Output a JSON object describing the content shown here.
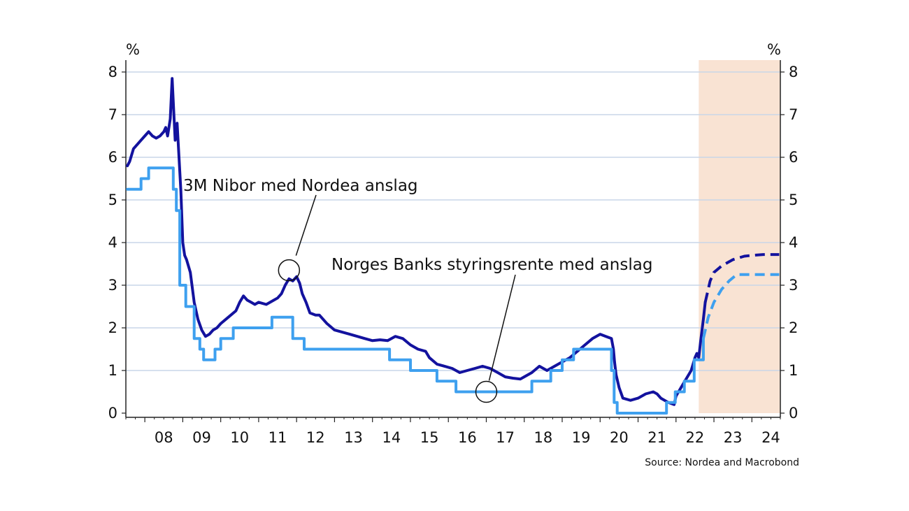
{
  "chart_data": {
    "type": "line",
    "title": "",
    "source": "Source: Nordea and Macrobond",
    "y_unit_left": "%",
    "y_unit_right": "%",
    "ylim": [
      0,
      8
    ],
    "y_ticks": [
      0,
      1,
      2,
      3,
      4,
      5,
      6,
      7,
      8
    ],
    "xlim": [
      2007.5,
      2024.75
    ],
    "x_tick_labels": [
      "08",
      "09",
      "10",
      "11",
      "12",
      "13",
      "14",
      "15",
      "16",
      "17",
      "18",
      "19",
      "20",
      "21",
      "22",
      "23",
      "24"
    ],
    "grid": "horizontal",
    "forecast_region": {
      "start": 2022.6,
      "end": 2024.75,
      "color": "#f9e3d3"
    },
    "annotations": [
      {
        "text": "3M Nibor med Nordea anslag",
        "series": "nibor",
        "point": [
          2011.8,
          3.35
        ]
      },
      {
        "text": "Norges Banks styringsrente med anslag",
        "series": "policy",
        "point": [
          2017.0,
          0.5
        ]
      }
    ],
    "series": [
      {
        "key": "nibor",
        "color": "#13129e",
        "points": [
          [
            2007.54,
            5.8
          ],
          [
            2007.6,
            5.9
          ],
          [
            2007.7,
            6.2
          ],
          [
            2007.8,
            6.3
          ],
          [
            2007.9,
            6.4
          ],
          [
            2008.0,
            6.5
          ],
          [
            2008.1,
            6.6
          ],
          [
            2008.2,
            6.5
          ],
          [
            2008.3,
            6.45
          ],
          [
            2008.4,
            6.5
          ],
          [
            2008.5,
            6.6
          ],
          [
            2008.55,
            6.7
          ],
          [
            2008.6,
            6.5
          ],
          [
            2008.67,
            6.9
          ],
          [
            2008.72,
            7.85
          ],
          [
            2008.76,
            7.1
          ],
          [
            2008.8,
            6.4
          ],
          [
            2008.85,
            6.8
          ],
          [
            2008.9,
            6.0
          ],
          [
            2008.95,
            5.2
          ],
          [
            2009.0,
            4.0
          ],
          [
            2009.05,
            3.7
          ],
          [
            2009.1,
            3.6
          ],
          [
            2009.2,
            3.3
          ],
          [
            2009.3,
            2.6
          ],
          [
            2009.4,
            2.2
          ],
          [
            2009.5,
            1.95
          ],
          [
            2009.6,
            1.8
          ],
          [
            2009.7,
            1.85
          ],
          [
            2009.8,
            1.95
          ],
          [
            2009.9,
            2.0
          ],
          [
            2010.0,
            2.1
          ],
          [
            2010.2,
            2.25
          ],
          [
            2010.4,
            2.4
          ],
          [
            2010.5,
            2.6
          ],
          [
            2010.6,
            2.75
          ],
          [
            2010.7,
            2.65
          ],
          [
            2010.8,
            2.6
          ],
          [
            2010.9,
            2.55
          ],
          [
            2011.0,
            2.6
          ],
          [
            2011.2,
            2.55
          ],
          [
            2011.4,
            2.65
          ],
          [
            2011.5,
            2.7
          ],
          [
            2011.6,
            2.8
          ],
          [
            2011.7,
            3.0
          ],
          [
            2011.8,
            3.15
          ],
          [
            2011.9,
            3.1
          ],
          [
            2012.0,
            3.2
          ],
          [
            2012.08,
            3.05
          ],
          [
            2012.15,
            2.8
          ],
          [
            2012.25,
            2.6
          ],
          [
            2012.35,
            2.35
          ],
          [
            2012.5,
            2.3
          ],
          [
            2012.6,
            2.3
          ],
          [
            2012.8,
            2.1
          ],
          [
            2013.0,
            1.95
          ],
          [
            2013.2,
            1.9
          ],
          [
            2013.4,
            1.85
          ],
          [
            2013.6,
            1.8
          ],
          [
            2013.8,
            1.75
          ],
          [
            2014.0,
            1.7
          ],
          [
            2014.2,
            1.72
          ],
          [
            2014.4,
            1.7
          ],
          [
            2014.6,
            1.8
          ],
          [
            2014.8,
            1.75
          ],
          [
            2015.0,
            1.6
          ],
          [
            2015.2,
            1.5
          ],
          [
            2015.4,
            1.45
          ],
          [
            2015.5,
            1.3
          ],
          [
            2015.7,
            1.15
          ],
          [
            2015.9,
            1.1
          ],
          [
            2016.1,
            1.05
          ],
          [
            2016.3,
            0.95
          ],
          [
            2016.5,
            1.0
          ],
          [
            2016.7,
            1.05
          ],
          [
            2016.9,
            1.1
          ],
          [
            2017.1,
            1.05
          ],
          [
            2017.3,
            0.95
          ],
          [
            2017.5,
            0.85
          ],
          [
            2017.7,
            0.82
          ],
          [
            2017.9,
            0.8
          ],
          [
            2018.0,
            0.85
          ],
          [
            2018.2,
            0.95
          ],
          [
            2018.4,
            1.1
          ],
          [
            2018.6,
            1.0
          ],
          [
            2018.8,
            1.1
          ],
          [
            2019.0,
            1.2
          ],
          [
            2019.2,
            1.3
          ],
          [
            2019.4,
            1.45
          ],
          [
            2019.6,
            1.6
          ],
          [
            2019.8,
            1.75
          ],
          [
            2020.0,
            1.85
          ],
          [
            2020.15,
            1.8
          ],
          [
            2020.3,
            1.75
          ],
          [
            2020.35,
            1.5
          ],
          [
            2020.38,
            1.2
          ],
          [
            2020.42,
            0.9
          ],
          [
            2020.5,
            0.6
          ],
          [
            2020.6,
            0.35
          ],
          [
            2020.8,
            0.3
          ],
          [
            2021.0,
            0.35
          ],
          [
            2021.2,
            0.45
          ],
          [
            2021.4,
            0.5
          ],
          [
            2021.5,
            0.45
          ],
          [
            2021.6,
            0.35
          ],
          [
            2021.8,
            0.25
          ],
          [
            2021.95,
            0.2
          ],
          [
            2022.0,
            0.4
          ],
          [
            2022.2,
            0.7
          ],
          [
            2022.4,
            1.0
          ],
          [
            2022.5,
            1.3
          ],
          [
            2022.55,
            1.4
          ],
          [
            2022.6,
            1.3
          ],
          [
            2022.65,
            1.7
          ],
          [
            2022.72,
            2.2
          ],
          [
            2022.77,
            2.6
          ]
        ]
      },
      {
        "key": "nibor_forecast",
        "color": "#13129e",
        "dashed": true,
        "points": [
          [
            2022.77,
            2.6
          ],
          [
            2022.9,
            3.1
          ],
          [
            2023.0,
            3.3
          ],
          [
            2023.2,
            3.45
          ],
          [
            2023.5,
            3.6
          ],
          [
            2023.8,
            3.68
          ],
          [
            2024.0,
            3.7
          ],
          [
            2024.3,
            3.72
          ],
          [
            2024.72,
            3.72
          ]
        ]
      },
      {
        "key": "policy",
        "color": "#3ea0ef",
        "points": [
          [
            2007.54,
            5.25
          ],
          [
            2007.9,
            5.25
          ],
          [
            2007.9,
            5.5
          ],
          [
            2008.1,
            5.5
          ],
          [
            2008.1,
            5.75
          ],
          [
            2008.75,
            5.75
          ],
          [
            2008.75,
            5.25
          ],
          [
            2008.83,
            5.25
          ],
          [
            2008.83,
            4.75
          ],
          [
            2008.92,
            4.75
          ],
          [
            2008.92,
            3.0
          ],
          [
            2009.08,
            3.0
          ],
          [
            2009.08,
            2.5
          ],
          [
            2009.3,
            2.5
          ],
          [
            2009.3,
            1.75
          ],
          [
            2009.45,
            1.75
          ],
          [
            2009.45,
            1.5
          ],
          [
            2009.55,
            1.5
          ],
          [
            2009.55,
            1.25
          ],
          [
            2009.85,
            1.25
          ],
          [
            2009.85,
            1.5
          ],
          [
            2010.0,
            1.5
          ],
          [
            2010.0,
            1.75
          ],
          [
            2010.33,
            1.75
          ],
          [
            2010.33,
            2.0
          ],
          [
            2011.35,
            2.0
          ],
          [
            2011.35,
            2.25
          ],
          [
            2011.9,
            2.25
          ],
          [
            2011.9,
            1.75
          ],
          [
            2012.2,
            1.75
          ],
          [
            2012.2,
            1.5
          ],
          [
            2014.45,
            1.5
          ],
          [
            2014.45,
            1.25
          ],
          [
            2015.0,
            1.25
          ],
          [
            2015.0,
            1.0
          ],
          [
            2015.7,
            1.0
          ],
          [
            2015.7,
            0.75
          ],
          [
            2016.2,
            0.75
          ],
          [
            2016.2,
            0.5
          ],
          [
            2018.2,
            0.5
          ],
          [
            2018.2,
            0.75
          ],
          [
            2018.7,
            0.75
          ],
          [
            2018.7,
            1.0
          ],
          [
            2019.0,
            1.0
          ],
          [
            2019.0,
            1.25
          ],
          [
            2019.3,
            1.25
          ],
          [
            2019.3,
            1.5
          ],
          [
            2019.7,
            1.5
          ],
          [
            2019.7,
            1.5
          ],
          [
            2020.3,
            1.5
          ],
          [
            2020.3,
            1.0
          ],
          [
            2020.37,
            1.0
          ],
          [
            2020.37,
            0.25
          ],
          [
            2020.45,
            0.25
          ],
          [
            2020.45,
            0.0
          ],
          [
            2021.75,
            0.0
          ],
          [
            2021.75,
            0.25
          ],
          [
            2021.98,
            0.25
          ],
          [
            2021.98,
            0.5
          ],
          [
            2022.22,
            0.5
          ],
          [
            2022.22,
            0.75
          ],
          [
            2022.48,
            0.75
          ],
          [
            2022.48,
            1.25
          ],
          [
            2022.72,
            1.25
          ],
          [
            2022.72,
            1.75
          ]
        ]
      },
      {
        "key": "policy_forecast",
        "color": "#3ea0ef",
        "dashed": true,
        "points": [
          [
            2022.72,
            1.75
          ],
          [
            2022.85,
            2.25
          ],
          [
            2023.0,
            2.6
          ],
          [
            2023.2,
            2.9
          ],
          [
            2023.4,
            3.1
          ],
          [
            2023.6,
            3.25
          ],
          [
            2023.8,
            3.25
          ],
          [
            2024.72,
            3.25
          ]
        ]
      }
    ]
  }
}
